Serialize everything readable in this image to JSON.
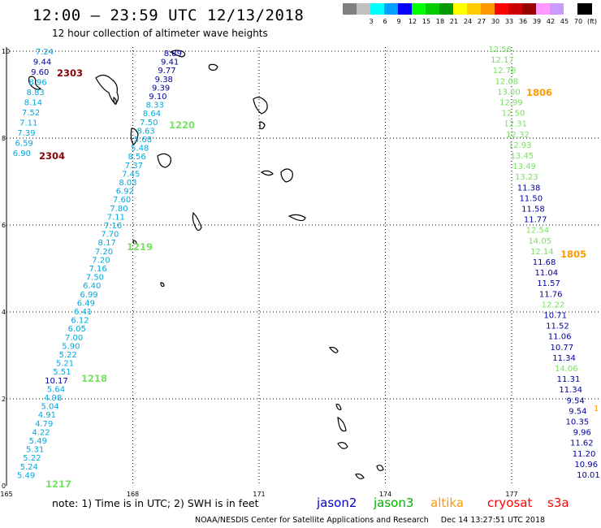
{
  "header": {
    "title": "12:00 – 23:59 UTC 12/13/2018",
    "subtitle": "12 hour collection of altimeter wave heights"
  },
  "legend": {
    "items": [
      {
        "label": "",
        "color": "#808080"
      },
      {
        "label": "3",
        "color": "#c0c0c0"
      },
      {
        "label": "6",
        "color": "#00ffff"
      },
      {
        "label": "9",
        "color": "#00a0ff"
      },
      {
        "label": "12",
        "color": "#0000ff"
      },
      {
        "label": "15",
        "color": "#00ff00"
      },
      {
        "label": "18",
        "color": "#00cc00"
      },
      {
        "label": "21",
        "color": "#009900"
      },
      {
        "label": "24",
        "color": "#ffff00"
      },
      {
        "label": "27",
        "color": "#ffcc00"
      },
      {
        "label": "30",
        "color": "#ff9900"
      },
      {
        "label": "33",
        "color": "#ff0000"
      },
      {
        "label": "36",
        "color": "#cc0000"
      },
      {
        "label": "39",
        "color": "#990000"
      },
      {
        "label": "42",
        "color": "#ff99ff"
      },
      {
        "label": "45",
        "color": "#cc99ff"
      },
      {
        "label": "70",
        "color": "#ffffff"
      },
      {
        "label": "(ft)",
        "color": "#000000"
      }
    ]
  },
  "axes": {
    "x_ticks": [
      "165",
      "168",
      "171",
      "174",
      "177"
    ],
    "y_ticks": [
      "0",
      "2",
      "4",
      "6",
      "8",
      "10"
    ]
  },
  "colors": {
    "jason2": "#0000c8",
    "jason3": "#00b400",
    "altika": "#ff9900",
    "cryosat": "#ff0000",
    "s3a": "#ff0000",
    "cyan_heights": "#00a8e0",
    "green_heights": "#78e060",
    "navy_heights": "#0000a0",
    "maroon_time": "#8b0000",
    "green_time": "#008000",
    "orange_time": "#ff9900"
  },
  "tracks": {
    "main_values": [
      {
        "v": "8.89",
        "c": "navy"
      },
      {
        "v": "9.41",
        "c": "navy"
      },
      {
        "v": "9.77",
        "c": "navy"
      },
      {
        "v": "9.38",
        "c": "navy"
      },
      {
        "v": "9.39",
        "c": "navy"
      },
      {
        "v": "9.10",
        "c": "navy"
      },
      {
        "v": "8.33",
        "c": "cyan"
      },
      {
        "v": "8.64",
        "c": "cyan"
      },
      {
        "v": "7.50",
        "c": "cyan"
      },
      {
        "v": "8.63",
        "c": "cyan"
      },
      {
        "v": "5.68",
        "c": "cyan"
      },
      {
        "v": "5.48",
        "c": "cyan"
      },
      {
        "v": "8.56",
        "c": "cyan"
      },
      {
        "v": "7.37",
        "c": "cyan"
      },
      {
        "v": "7.45",
        "c": "cyan"
      },
      {
        "v": "8.03",
        "c": "cyan"
      },
      {
        "v": "6.92",
        "c": "cyan"
      },
      {
        "v": "7.60",
        "c": "cyan"
      },
      {
        "v": "7.80",
        "c": "cyan"
      },
      {
        "v": "7.11",
        "c": "cyan"
      },
      {
        "v": "7.16",
        "c": "cyan"
      },
      {
        "v": "7.70",
        "c": "cyan"
      },
      {
        "v": "8.17",
        "c": "cyan"
      },
      {
        "v": "7.20",
        "c": "cyan"
      },
      {
        "v": "7.20",
        "c": "cyan"
      },
      {
        "v": "7.16",
        "c": "cyan"
      },
      {
        "v": "7.50",
        "c": "cyan"
      },
      {
        "v": "6.40",
        "c": "cyan"
      },
      {
        "v": "6.99",
        "c": "cyan"
      },
      {
        "v": "6.49",
        "c": "cyan"
      },
      {
        "v": "6.41",
        "c": "cyan"
      },
      {
        "v": "6.12",
        "c": "cyan"
      },
      {
        "v": "6.05",
        "c": "cyan"
      },
      {
        "v": "7.00",
        "c": "cyan"
      },
      {
        "v": "5.90",
        "c": "cyan"
      },
      {
        "v": "5.22",
        "c": "cyan"
      },
      {
        "v": "5.21",
        "c": "cyan"
      },
      {
        "v": "5.51",
        "c": "cyan"
      },
      {
        "v": "10.17",
        "c": "navy"
      },
      {
        "v": "5.64",
        "c": "cyan"
      },
      {
        "v": "4.98",
        "c": "cyan"
      },
      {
        "v": "5.04",
        "c": "cyan"
      },
      {
        "v": "4.91",
        "c": "cyan"
      },
      {
        "v": "4.79",
        "c": "cyan"
      },
      {
        "v": "4.22",
        "c": "cyan"
      },
      {
        "v": "5.49",
        "c": "cyan"
      },
      {
        "v": "5.31",
        "c": "cyan"
      },
      {
        "v": "5.22",
        "c": "cyan"
      },
      {
        "v": "5.24",
        "c": "cyan"
      },
      {
        "v": "5.49",
        "c": "cyan"
      }
    ],
    "left_values": [
      {
        "v": "7.24",
        "c": "cyan"
      },
      {
        "v": "9.44",
        "c": "navy"
      },
      {
        "v": "9.60",
        "c": "navy"
      },
      {
        "v": "8.96",
        "c": "cyan"
      },
      {
        "v": "8.83",
        "c": "cyan"
      },
      {
        "v": "8.14",
        "c": "cyan"
      },
      {
        "v": "7.52",
        "c": "cyan"
      },
      {
        "v": "7.11",
        "c": "cyan"
      },
      {
        "v": "7.39",
        "c": "cyan"
      },
      {
        "v": "6.59",
        "c": "cyan"
      },
      {
        "v": "6.90",
        "c": "cyan"
      }
    ],
    "right_values": [
      {
        "v": "12.56",
        "c": "green"
      },
      {
        "v": "12.17",
        "c": "green"
      },
      {
        "v": "12.78",
        "c": "green"
      },
      {
        "v": "12.08",
        "c": "green"
      },
      {
        "v": "13.00",
        "c": "green"
      },
      {
        "v": "12.99",
        "c": "green"
      },
      {
        "v": "12.50",
        "c": "green"
      },
      {
        "v": "12.31",
        "c": "green"
      },
      {
        "v": "12.32",
        "c": "green"
      },
      {
        "v": "12.93",
        "c": "green"
      },
      {
        "v": "13.45",
        "c": "green"
      },
      {
        "v": "13.49",
        "c": "green"
      },
      {
        "v": "13.23",
        "c": "green"
      },
      {
        "v": "11.38",
        "c": "navy"
      },
      {
        "v": "11.50",
        "c": "navy"
      },
      {
        "v": "11.58",
        "c": "navy"
      },
      {
        "v": "11.77",
        "c": "navy"
      },
      {
        "v": "12.54",
        "c": "green"
      },
      {
        "v": "14.05",
        "c": "green"
      },
      {
        "v": "12.14",
        "c": "green"
      },
      {
        "v": "11.68",
        "c": "navy"
      },
      {
        "v": "11.04",
        "c": "navy"
      },
      {
        "v": "11.57",
        "c": "navy"
      },
      {
        "v": "11.76",
        "c": "navy"
      },
      {
        "v": "12.22",
        "c": "green"
      },
      {
        "v": "10.71",
        "c": "navy"
      },
      {
        "v": "11.52",
        "c": "navy"
      },
      {
        "v": "11.06",
        "c": "navy"
      },
      {
        "v": "10.77",
        "c": "navy"
      },
      {
        "v": "11.34",
        "c": "navy"
      },
      {
        "v": "14.06",
        "c": "green"
      },
      {
        "v": "11.31",
        "c": "navy"
      },
      {
        "v": "11.34",
        "c": "navy"
      },
      {
        "v": "9.54",
        "c": "navy"
      },
      {
        "v": "9.54",
        "c": "navy"
      },
      {
        "v": "10.35",
        "c": "navy"
      },
      {
        "v": "9.96",
        "c": "navy"
      },
      {
        "v": "11.62",
        "c": "navy"
      },
      {
        "v": "11.20",
        "c": "navy"
      },
      {
        "v": "10.96",
        "c": "navy"
      },
      {
        "v": "10.01",
        "c": "navy"
      }
    ],
    "time_labels": [
      {
        "t": "2303",
        "c": "maroon"
      },
      {
        "t": "2304",
        "c": "maroon"
      },
      {
        "t": "1220",
        "c": "green"
      },
      {
        "t": "1219",
        "c": "green"
      },
      {
        "t": "1218",
        "c": "green"
      },
      {
        "t": "1217",
        "c": "green"
      },
      {
        "t": "1806",
        "c": "orange"
      },
      {
        "t": "1805",
        "c": "orange"
      }
    ],
    "edge_mark": "1"
  },
  "footer": {
    "note": "note:  1) Time is in UTC;  2) SWH is in feet",
    "satellites": [
      "jason2",
      "jason3",
      "altika",
      "cryosat",
      "s3a"
    ],
    "credit": "NOAA/NESDIS Center for Satellite Applications and Research     Dec 14 13:27:51 UTC 2018"
  }
}
